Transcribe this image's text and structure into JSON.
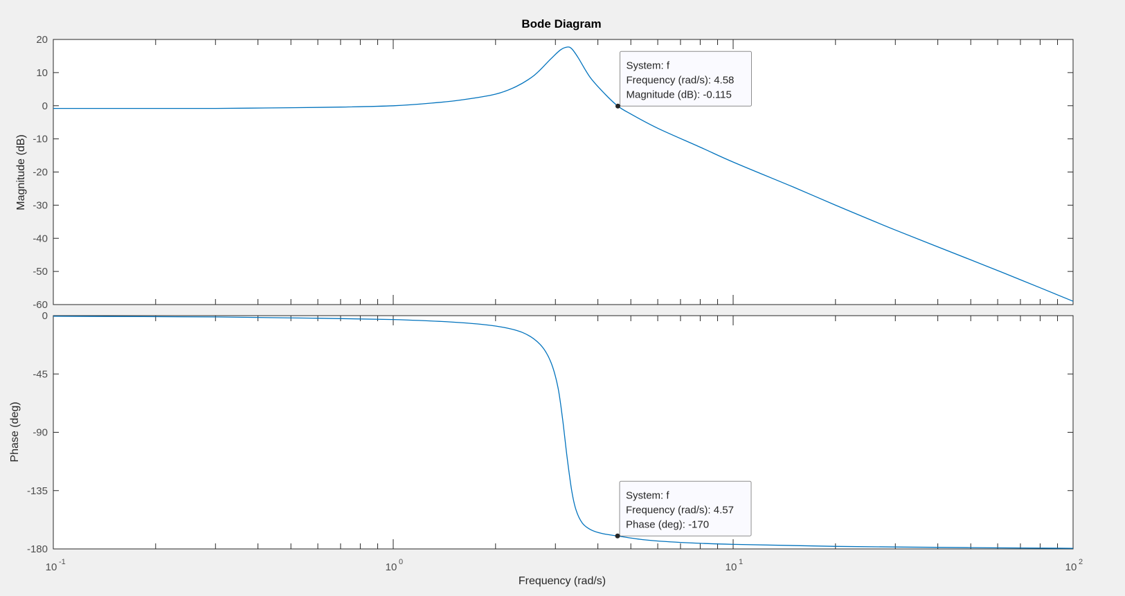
{
  "chart_data": [
    {
      "type": "line",
      "panel": "magnitude",
      "title": "Bode Diagram",
      "xlabel": "Frequency  (rad/s)",
      "ylabel": "Magnitude (dB)",
      "xscale": "log",
      "xlim": [
        0.1,
        100
      ],
      "ylim": [
        -60,
        20
      ],
      "yticks": [
        20,
        10,
        0,
        -10,
        -20,
        -30,
        -40,
        -50,
        -60
      ],
      "ytick_labels": [
        "20",
        "10",
        "0",
        "-10",
        "-20",
        "-30",
        "-40",
        "-50",
        "-60"
      ],
      "grid": false,
      "line_color": "#0072bd",
      "series": [
        {
          "x": [
            0.1,
            0.2,
            0.3,
            0.5,
            0.7,
            1,
            1.3,
            1.6,
            2,
            2.3,
            2.6,
            2.9,
            3.1,
            3.25,
            3.35,
            3.5,
            3.8,
            4.2,
            4.58,
            5,
            6,
            8,
            10,
            15,
            20,
            30,
            50,
            70,
            100
          ],
          "y": [
            -0.8,
            -0.8,
            -0.8,
            -0.6,
            -0.4,
            0,
            0.8,
            1.8,
            3.5,
            5.8,
            9.2,
            14,
            16.8,
            17.7,
            17.2,
            14.5,
            8.5,
            3.5,
            -0.115,
            -2.5,
            -6.8,
            -12.5,
            -17,
            -24.5,
            -30,
            -37.5,
            -46.5,
            -52.5,
            -59
          ]
        }
      ],
      "datatip": {
        "system": "System: f",
        "frequency": "Frequency (rad/s): 4.58",
        "value": "Magnitude (dB): -0.115",
        "x": 4.58,
        "y": -0.115
      }
    },
    {
      "type": "line",
      "panel": "phase",
      "xlabel": "Frequency  (rad/s)",
      "ylabel": "Phase (deg)",
      "xscale": "log",
      "xlim": [
        0.1,
        100
      ],
      "ylim": [
        -180,
        0
      ],
      "yticks": [
        0,
        -45,
        -90,
        -135,
        -180
      ],
      "ytick_labels": [
        "0",
        "-45",
        "-90",
        "-135",
        "-180"
      ],
      "grid": false,
      "line_color": "#0072bd",
      "series": [
        {
          "x": [
            0.1,
            0.3,
            0.6,
            1,
            1.5,
            2,
            2.4,
            2.7,
            2.9,
            3.05,
            3.15,
            3.25,
            3.35,
            3.45,
            3.6,
            3.8,
            4.1,
            4.57,
            5.5,
            7,
            10,
            20,
            50,
            100
          ],
          "y": [
            -0.5,
            -1,
            -2,
            -3,
            -5,
            -8,
            -13,
            -22,
            -35,
            -55,
            -80,
            -110,
            -135,
            -150,
            -160,
            -165,
            -168,
            -170,
            -173,
            -175,
            -176.5,
            -178,
            -179,
            -179.5
          ]
        }
      ],
      "datatip": {
        "system": "System: f",
        "frequency": "Frequency (rad/s): 4.57",
        "value": "Phase (deg): -170",
        "x": 4.57,
        "y": -170
      }
    }
  ],
  "x_ticks": [
    {
      "base": "10",
      "exp": "-1",
      "value": 0.1
    },
    {
      "base": "10",
      "exp": "0",
      "value": 1
    },
    {
      "base": "10",
      "exp": "1",
      "value": 10
    },
    {
      "base": "10",
      "exp": "2",
      "value": 100
    }
  ]
}
